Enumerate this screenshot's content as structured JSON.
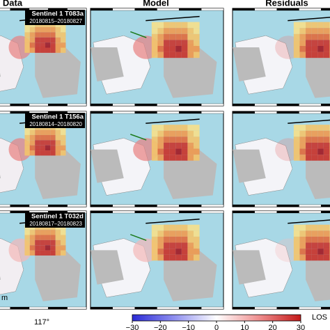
{
  "column_titles": [
    "Data",
    "Model",
    "Residuals"
  ],
  "rows": [
    {
      "track": "Sentinel 1 T083a",
      "dates": "20180815–20180827"
    },
    {
      "track": "Sentinel 1 T156a",
      "dates": "20180814–20180820"
    },
    {
      "track": "Sentinel 1 T032d",
      "dates": "20180817–20180823"
    }
  ],
  "longitude_label": "117°",
  "scale_label": "m",
  "colorbar": {
    "label": "LOS",
    "lim": [
      -30,
      30
    ],
    "ticks": [
      {
        "value": -30,
        "label": "−30"
      },
      {
        "value": -20,
        "label": "−20"
      },
      {
        "value": -10,
        "label": "−10"
      },
      0,
      10,
      20,
      30
    ]
  }
}
